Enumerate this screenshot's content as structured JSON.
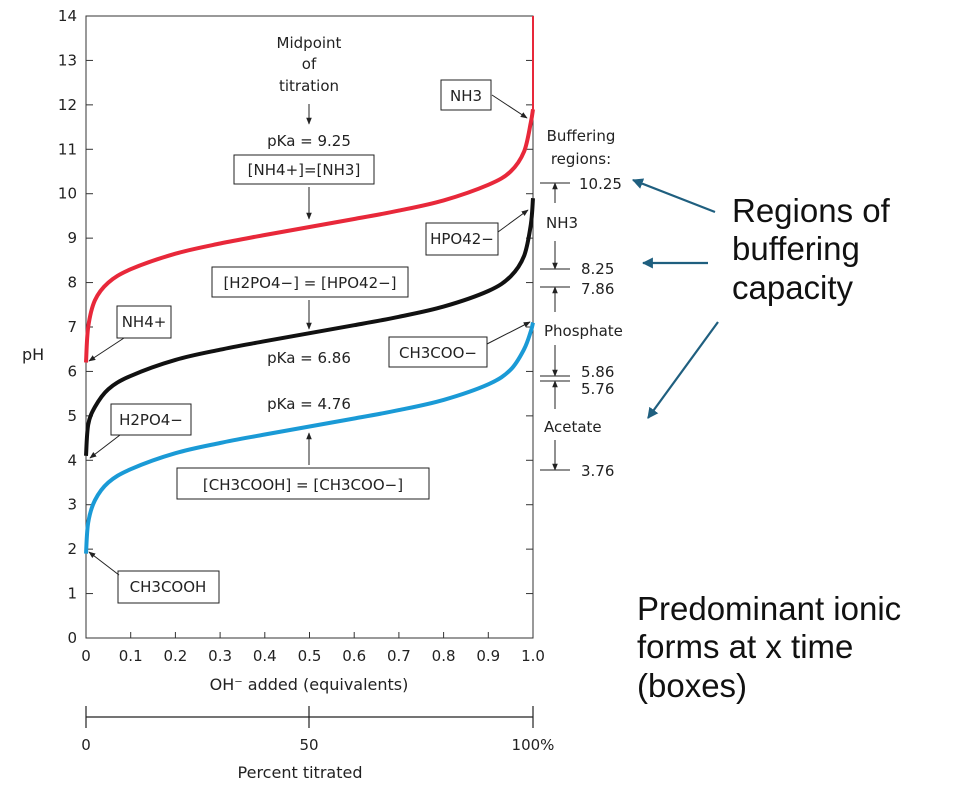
{
  "chart_data": {
    "type": "line",
    "ylabel": "pH",
    "xlabel": "OH⁻ added (equivalents)",
    "xlabel2": "Percent titrated",
    "xlim": [
      0,
      1.0
    ],
    "ylim": [
      0,
      14
    ],
    "x_ticks": [
      "0",
      "0.1",
      "0.2",
      "0.3",
      "0.4",
      "0.5",
      "0.6",
      "0.7",
      "0.8",
      "0.9",
      "1.0"
    ],
    "y_ticks": [
      "0",
      "1",
      "2",
      "3",
      "4",
      "5",
      "6",
      "7",
      "8",
      "9",
      "10",
      "11",
      "12",
      "13",
      "14"
    ],
    "x2_ticks": [
      "0",
      "50",
      "100%"
    ],
    "series": [
      {
        "color": "#e8283a",
        "x": [
          0,
          0.005,
          0.02,
          0.05,
          0.1,
          0.2,
          0.3,
          0.4,
          0.5,
          0.6,
          0.7,
          0.8,
          0.9,
          0.95,
          0.98,
          0.995,
          1.0
        ],
        "y": [
          6.2,
          7.0,
          7.6,
          8.0,
          8.3,
          8.65,
          8.88,
          9.07,
          9.25,
          9.43,
          9.62,
          9.85,
          10.2,
          10.5,
          10.95,
          11.6,
          11.9
        ]
      },
      {
        "color": "#111111",
        "x": [
          0,
          0.005,
          0.02,
          0.05,
          0.1,
          0.2,
          0.3,
          0.4,
          0.5,
          0.6,
          0.7,
          0.8,
          0.9,
          0.95,
          0.98,
          0.995,
          1.0
        ],
        "y": [
          4.1,
          4.8,
          5.2,
          5.6,
          5.9,
          6.26,
          6.49,
          6.68,
          6.86,
          7.04,
          7.23,
          7.46,
          7.81,
          8.14,
          8.6,
          9.3,
          9.9
        ]
      },
      {
        "color": "#1a9ad6",
        "x": [
          0,
          0.005,
          0.02,
          0.05,
          0.1,
          0.2,
          0.3,
          0.4,
          0.5,
          0.6,
          0.7,
          0.8,
          0.9,
          0.95,
          0.98,
          0.995,
          1.0
        ],
        "y": [
          1.9,
          2.6,
          3.1,
          3.5,
          3.8,
          4.16,
          4.39,
          4.58,
          4.76,
          4.94,
          5.13,
          5.36,
          5.71,
          6.04,
          6.5,
          6.9,
          7.1
        ]
      }
    ],
    "annotations": {
      "midpoint": [
        "Midpoint",
        "of",
        "titration"
      ],
      "pka_nh4": "pKa = 9.25",
      "eq_nh4": "[NH4+]=[NH3]",
      "eq_phos": "[H2PO4−] = [HPO42−]",
      "pka_phos": "pKa = 6.86",
      "pka_acet": "pKa = 4.76",
      "eq_acet": "[CH3COOH] = [CH3COO−]",
      "species": {
        "nh3": "NH3",
        "nh4": "NH4+",
        "hpo4": "HPO42−",
        "h2po4": "H2PO4−",
        "ch3coo": "CH3COO−",
        "ch3cooh": "CH3COOH"
      }
    },
    "buffering": {
      "title": [
        "Buffering",
        "regions:"
      ],
      "values": [
        "10.25",
        "8.25",
        "7.86",
        "5.86",
        "5.76",
        "3.76"
      ],
      "labels": [
        "NH3",
        "Phosphate",
        "Acetate"
      ]
    },
    "arrow_color": "#1f5f7f"
  },
  "callouts": {
    "buffering": [
      "Regions of",
      "buffering",
      "capacity"
    ],
    "ionic": [
      "Predominant ionic",
      "forms at x time",
      "(boxes)"
    ]
  }
}
